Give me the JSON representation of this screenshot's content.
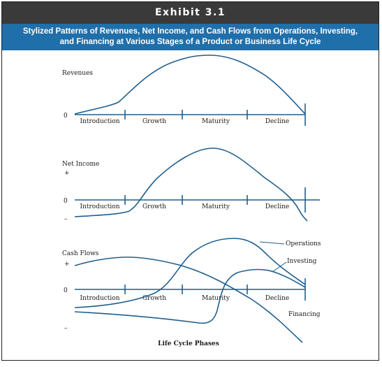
{
  "exhibit": {
    "number_label": "Exhibit 3.1",
    "title_line1": "Stylized Patterns of Revenues, Net Income, and Cash Flows from Operations, Investing,",
    "title_line2": "and Financing at Various Stages of a Product or Business Life Cycle",
    "footer": "Life Cycle Phases"
  },
  "colors": {
    "header_dark": "#3a3a3a",
    "header_blue": "#1f6fab",
    "line": "#1f5f8f"
  },
  "chart_data": [
    {
      "type": "line",
      "title": "Revenues",
      "ylabel": "Revenues",
      "y_tick_labels": [
        "0"
      ],
      "phases": [
        "Introduction",
        "Growth",
        "Maturity",
        "Decline"
      ],
      "series": [
        {
          "values": [
            0,
            0.25,
            0.7,
            1.0,
            0.6,
            0
          ]
        }
      ]
    },
    {
      "type": "line",
      "title": "Net Income",
      "ylabel": "Net Income",
      "y_tick_labels": [
        "+",
        "0",
        "–"
      ],
      "phases": [
        "Introduction",
        "Growth",
        "Maturity",
        "Decline"
      ],
      "series": [
        {
          "values": [
            -0.3,
            -0.2,
            0.6,
            1.0,
            0.5,
            -0.2
          ]
        }
      ]
    },
    {
      "type": "line",
      "title": "Cash Flows",
      "ylabel": "Cash Flows",
      "y_tick_labels": [
        "+",
        "0",
        "–"
      ],
      "phases": [
        "Introduction",
        "Growth",
        "Maturity",
        "Decline"
      ],
      "series": [
        {
          "name": "Operations",
          "values": [
            -0.35,
            -0.2,
            0.6,
            1.0,
            0.7,
            0.05
          ]
        },
        {
          "name": "Investing",
          "values": [
            0.65,
            0.7,
            0.3,
            -0.5,
            -0.9,
            -1.0
          ]
        },
        {
          "name": "Financing",
          "values": [
            -0.4,
            -0.5,
            -0.6,
            -0.1,
            0.4,
            0.2
          ]
        }
      ]
    }
  ]
}
